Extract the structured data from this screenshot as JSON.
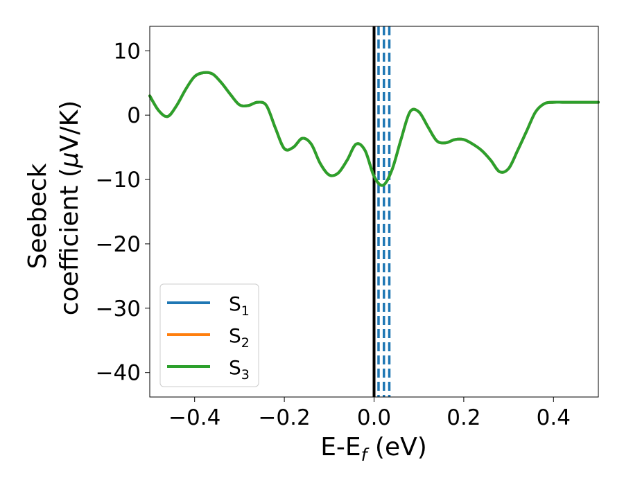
{
  "chart_data": {
    "type": "line",
    "xlabel": {
      "main": "E-E",
      "sub": "f",
      "suffix": " (eV)"
    },
    "ylabel": {
      "line1": "Seebeck",
      "line2_prefix": "coefficient  (",
      "line2_mu": "μ",
      "line2_suffix": "V/K)"
    },
    "xlim": [
      -0.5,
      0.5
    ],
    "ylim": [
      -43.8,
      13.8
    ],
    "xticks": [
      -0.4,
      -0.2,
      0.0,
      0.2,
      0.4
    ],
    "xtick_labels": [
      "−0.4",
      "−0.2",
      "0.0",
      "0.2",
      "0.4"
    ],
    "yticks": [
      -40,
      -30,
      -20,
      -10,
      0,
      10
    ],
    "ytick_labels": [
      "−40",
      "−30",
      "−20",
      "−10",
      "0",
      "10"
    ],
    "grid": false,
    "legend_position": "lower-left",
    "vertical_lines": [
      {
        "x": 0.0,
        "style": "solid",
        "color": "#000000"
      },
      {
        "x": 0.01,
        "style": "dashed",
        "color": "#1f77b4"
      },
      {
        "x": 0.022,
        "style": "dashed",
        "color": "#1f77b4"
      },
      {
        "x": 0.034,
        "style": "dashed",
        "color": "#1f77b4"
      }
    ],
    "series": [
      {
        "name": {
          "base": "S",
          "sub": "1"
        },
        "color": "#1f77b4"
      },
      {
        "name": {
          "base": "S",
          "sub": "2"
        },
        "color": "#ff7f0e"
      },
      {
        "name": {
          "base": "S",
          "sub": "3"
        },
        "color": "#2ca02c"
      }
    ],
    "x": [
      -0.5,
      -0.48,
      -0.46,
      -0.44,
      -0.42,
      -0.4,
      -0.38,
      -0.36,
      -0.34,
      -0.32,
      -0.3,
      -0.28,
      -0.26,
      -0.24,
      -0.22,
      -0.2,
      -0.18,
      -0.16,
      -0.14,
      -0.12,
      -0.1,
      -0.08,
      -0.06,
      -0.04,
      -0.02,
      0.0,
      0.02,
      0.04,
      0.06,
      0.08,
      0.1,
      0.12,
      0.14,
      0.16,
      0.18,
      0.2,
      0.22,
      0.24,
      0.26,
      0.28,
      0.3,
      0.32,
      0.34,
      0.36,
      0.38,
      0.4,
      0.42,
      0.44,
      0.46,
      0.48,
      0.5
    ],
    "y": [
      3.0,
      0.7,
      -0.2,
      1.5,
      4.0,
      6.0,
      6.6,
      6.4,
      5.0,
      3.2,
      1.6,
      1.5,
      2.0,
      1.5,
      -2.0,
      -5.2,
      -5.0,
      -3.6,
      -4.5,
      -7.5,
      -9.3,
      -9.0,
      -7.0,
      -4.5,
      -5.5,
      -9.5,
      -10.9,
      -8.5,
      -3.8,
      0.5,
      0.5,
      -1.8,
      -4.0,
      -4.3,
      -3.8,
      -3.8,
      -4.5,
      -5.5,
      -7.0,
      -8.8,
      -8.3,
      -5.5,
      -2.5,
      0.5,
      1.8,
      2.0,
      2.0,
      2.0,
      2.0,
      2.0,
      2.0
    ]
  }
}
